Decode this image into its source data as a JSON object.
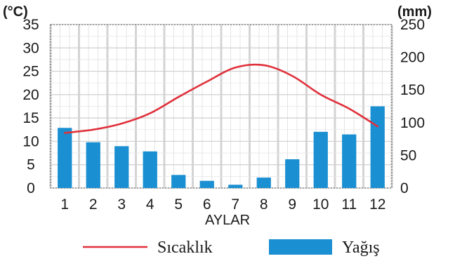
{
  "chart_data": {
    "type": "bar+line",
    "categories": [
      "1",
      "2",
      "3",
      "4",
      "5",
      "6",
      "7",
      "8",
      "9",
      "10",
      "11",
      "12"
    ],
    "xlabel": "AYLAR",
    "y_left_label": "(°C)",
    "y_right_label": "(mm)",
    "y_left_ticks": [
      "0",
      "5",
      "10",
      "15",
      "20",
      "25",
      "30",
      "35"
    ],
    "y_right_ticks": [
      "0",
      "50",
      "100",
      "150",
      "200",
      "250"
    ],
    "y_left_lim": [
      0,
      35
    ],
    "y_right_lim": [
      0,
      250
    ],
    "grid": true,
    "legend_position": "bottom",
    "series": [
      {
        "name": "Sıcaklık",
        "type": "line",
        "axis": "left",
        "color": "#e0313b",
        "values": [
          11.8,
          12.5,
          13.8,
          16.0,
          19.5,
          22.8,
          25.8,
          26.3,
          24.0,
          20.0,
          17.0,
          13.2
        ]
      },
      {
        "name": "Yağış",
        "type": "bar",
        "axis": "right",
        "color": "#1a8fd1",
        "values": [
          92,
          70,
          64,
          56,
          20,
          11,
          5,
          16,
          44,
          86,
          82,
          125
        ]
      }
    ]
  }
}
